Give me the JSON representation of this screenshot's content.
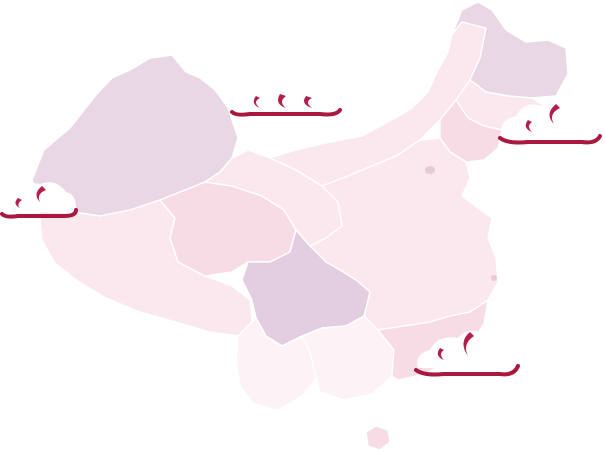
{
  "map": {
    "palette": {
      "light_pink": "#fbe7ee",
      "pink": "#f7dbe5",
      "mid_pink": "#f3d0dd",
      "lavender": "#ead7e6",
      "deep_lavender": "#e3cde0",
      "pale": "#fdf2f5",
      "cloud_accent": "#a8183f"
    },
    "provinces": [
      {
        "id": "xinjiang",
        "fill_key": "lavender"
      },
      {
        "id": "tibet",
        "fill_key": "light_pink"
      },
      {
        "id": "qinghai",
        "fill_key": "pink"
      },
      {
        "id": "gansu",
        "fill_key": "light_pink"
      },
      {
        "id": "inner-mongolia",
        "fill_key": "light_pink"
      },
      {
        "id": "heilongjiang",
        "fill_key": "lavender"
      },
      {
        "id": "jilin",
        "fill_key": "light_pink"
      },
      {
        "id": "liaoning",
        "fill_key": "pink"
      },
      {
        "id": "sichuan",
        "fill_key": "deep_lavender"
      },
      {
        "id": "yunnan",
        "fill_key": "pale"
      },
      {
        "id": "guangxi",
        "fill_key": "pale"
      },
      {
        "id": "guangdong",
        "fill_key": "pink"
      },
      {
        "id": "central-east",
        "fill_key": "light_pink"
      },
      {
        "id": "hainan",
        "fill_key": "pink"
      }
    ],
    "clouds": [
      {
        "id": "cloud-top-center"
      },
      {
        "id": "cloud-northeast"
      },
      {
        "id": "cloud-west"
      },
      {
        "id": "cloud-south"
      }
    ]
  }
}
